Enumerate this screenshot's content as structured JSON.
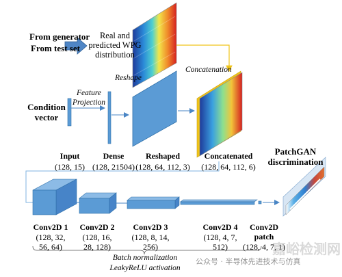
{
  "inputs": {
    "generator_line": "From generator",
    "testset_line": "From test set",
    "distribution_line1": "Real and",
    "distribution_line2": "predicted WPG",
    "distribution_line3": "distribution"
  },
  "condition": {
    "line1": "Condition",
    "line2": "vector"
  },
  "annotations": {
    "feature_projection_line1": "Feature",
    "feature_projection_line2": "Projection",
    "reshape": "Reshape",
    "concatenation": "Concatenation"
  },
  "stages": [
    {
      "name": "Input",
      "shape": "(128, 15)"
    },
    {
      "name": "Dense",
      "shape": "(128, 21504)"
    },
    {
      "name": "Reshaped",
      "shape": "(128, 64, 112, 3)"
    },
    {
      "name": "Concatenated",
      "shape": "(128, 64, 112, 6)"
    }
  ],
  "patchgan": {
    "line1": "PatchGAN",
    "line2": "discrimination"
  },
  "convs": [
    {
      "name": "Conv2D 1",
      "shape_line1": "(128, 32,",
      "shape_line2": "56, 64)"
    },
    {
      "name": "Conv2D 2",
      "shape_line1": "(128, 16,",
      "shape_line2": "28, 128)"
    },
    {
      "name": "Conv2D 3",
      "shape_line1": "(128, 8, 14,",
      "shape_line2": "256)"
    },
    {
      "name": "Conv2D 4",
      "shape_line1": "(128, 4, 7,",
      "shape_line2": "512)"
    },
    {
      "name_line1": "Conv2D",
      "name_line2": "patch",
      "shape": "(128, 4, 7, 1)"
    }
  ],
  "footer": {
    "line1": "Batch normalization",
    "line2": "LeakyReLU activation"
  },
  "watermark": {
    "wechat": "公众号 · 半导体先进技术与仿真",
    "brand": "嘉峪检测网"
  },
  "colors": {
    "block_blue": "#5b9bd5",
    "block_blue_dark": "#2e6fa8",
    "line_yellow": "#f0c419",
    "connector_blue": "#7fb3e0"
  }
}
